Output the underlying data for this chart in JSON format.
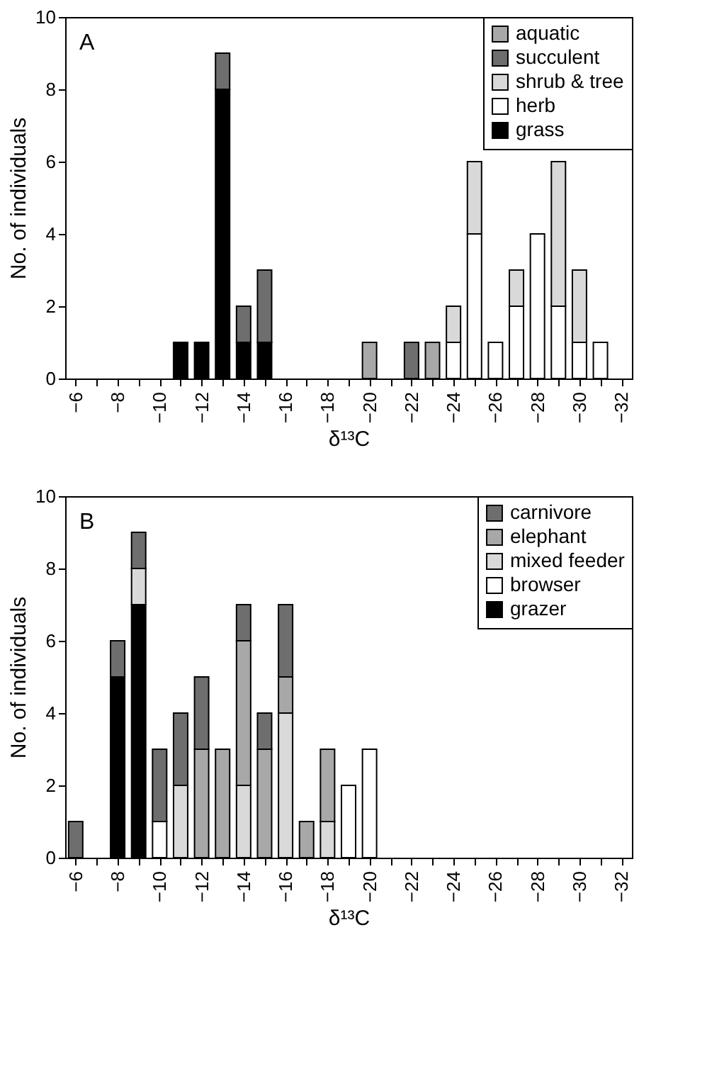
{
  "chart_data": [
    {
      "type": "bar",
      "stacked": true,
      "annotations": [
        "A"
      ],
      "xlabel": "δ¹³C",
      "ylabel": "No. of individuals",
      "x": [
        -11,
        -12,
        -13,
        -14,
        -15,
        -16,
        -17,
        -18,
        -19,
        -20,
        -21,
        -22,
        -23,
        -24,
        -25,
        -26,
        -27,
        -28,
        -29,
        -30,
        -31
      ],
      "series": [
        {
          "name": "grass",
          "color": "#000000",
          "values": [
            1,
            1,
            8,
            1,
            1,
            null,
            null,
            null,
            null,
            null,
            null,
            null,
            null,
            null,
            null,
            null,
            null,
            null,
            null,
            null,
            null
          ]
        },
        {
          "name": "herb",
          "color": "#ffffff",
          "values": [
            null,
            null,
            null,
            null,
            null,
            null,
            null,
            null,
            null,
            null,
            null,
            null,
            null,
            1,
            4,
            1,
            2,
            4,
            2,
            1,
            1
          ]
        },
        {
          "name": "shrub & tree",
          "color": "#d9d9d9",
          "values": [
            null,
            null,
            null,
            null,
            null,
            null,
            null,
            null,
            null,
            null,
            null,
            null,
            null,
            1,
            2,
            null,
            1,
            null,
            4,
            2,
            null
          ]
        },
        {
          "name": "succulent",
          "color": "#6e6e6e",
          "values": [
            null,
            null,
            1,
            1,
            2,
            null,
            null,
            null,
            null,
            null,
            null,
            1,
            null,
            null,
            null,
            null,
            null,
            null,
            null,
            null,
            null
          ]
        },
        {
          "name": "aquatic",
          "color": "#a8a8a8",
          "values": [
            null,
            null,
            null,
            null,
            null,
            null,
            null,
            null,
            null,
            1,
            null,
            null,
            1,
            null,
            null,
            null,
            null,
            null,
            null,
            null,
            null
          ]
        }
      ],
      "xlim": [
        -5.5,
        -32.5
      ],
      "xticks": [
        -6,
        {
          "value": -7,
          "label": null
        },
        -8,
        {
          "value": -9,
          "label": null
        },
        -10,
        {
          "value": -11,
          "label": null
        },
        -12,
        {
          "value": -13,
          "label": null
        },
        -14,
        {
          "value": -15,
          "label": null
        },
        -16,
        {
          "value": -17,
          "label": null
        },
        -18,
        {
          "value": -19,
          "label": null
        },
        -20,
        {
          "value": -21,
          "label": null
        },
        -22,
        {
          "value": -23,
          "label": null
        },
        -24,
        {
          "value": -25,
          "label": null
        },
        -26,
        {
          "value": -27,
          "label": null
        },
        -28,
        {
          "value": -29,
          "label": null
        },
        -30,
        {
          "value": -31,
          "label": null
        },
        -32
      ],
      "ylim": [
        0,
        10
      ],
      "yticks": [
        0,
        2,
        4,
        6,
        8,
        10
      ],
      "grid": false,
      "legend": "top right"
    },
    {
      "type": "bar",
      "stacked": true,
      "annotations": [
        "B"
      ],
      "xlabel": "δ¹³C",
      "ylabel": "No. of individuals",
      "x": [
        -6,
        -7,
        -8,
        -9,
        -10,
        -11,
        -12,
        -13,
        -14,
        -15,
        -16,
        -17,
        -18,
        -19,
        -20
      ],
      "series": [
        {
          "name": "grazer",
          "color": "#000000",
          "values": [
            null,
            null,
            5,
            7,
            null,
            null,
            null,
            null,
            null,
            null,
            null,
            null,
            null,
            null,
            null
          ]
        },
        {
          "name": "browser",
          "color": "#ffffff",
          "values": [
            null,
            null,
            null,
            null,
            1,
            null,
            null,
            null,
            null,
            null,
            null,
            null,
            null,
            2,
            3
          ]
        },
        {
          "name": "mixed feeder",
          "color": "#d9d9d9",
          "values": [
            null,
            null,
            null,
            1,
            null,
            2,
            null,
            null,
            2,
            null,
            4,
            null,
            1,
            null,
            null
          ]
        },
        {
          "name": "elephant",
          "color": "#a8a8a8",
          "values": [
            null,
            null,
            null,
            null,
            null,
            null,
            3,
            3,
            4,
            3,
            1,
            1,
            2,
            null,
            null
          ]
        },
        {
          "name": "carnivore",
          "color": "#6e6e6e",
          "values": [
            1,
            null,
            1,
            1,
            2,
            2,
            2,
            null,
            1,
            1,
            2,
            null,
            null,
            null,
            null
          ]
        }
      ],
      "xlim": [
        -5.5,
        -32.5
      ],
      "xticks": [
        -6,
        {
          "value": -7,
          "label": null
        },
        -8,
        {
          "value": -9,
          "label": null
        },
        -10,
        {
          "value": -11,
          "label": null
        },
        -12,
        {
          "value": -13,
          "label": null
        },
        -14,
        {
          "value": -15,
          "label": null
        },
        -16,
        {
          "value": -17,
          "label": null
        },
        -18,
        {
          "value": -19,
          "label": null
        },
        -20,
        {
          "value": -21,
          "label": null
        },
        -22,
        {
          "value": -23,
          "label": null
        },
        -24,
        {
          "value": -25,
          "label": null
        },
        -26,
        {
          "value": -27,
          "label": null
        },
        -28,
        {
          "value": -29,
          "label": null
        },
        -30,
        {
          "value": -31,
          "label": null
        },
        -32
      ],
      "ylim": [
        0,
        10
      ],
      "yticks": [
        0,
        2,
        4,
        6,
        8,
        10
      ],
      "grid": false,
      "legend": "top right"
    }
  ]
}
